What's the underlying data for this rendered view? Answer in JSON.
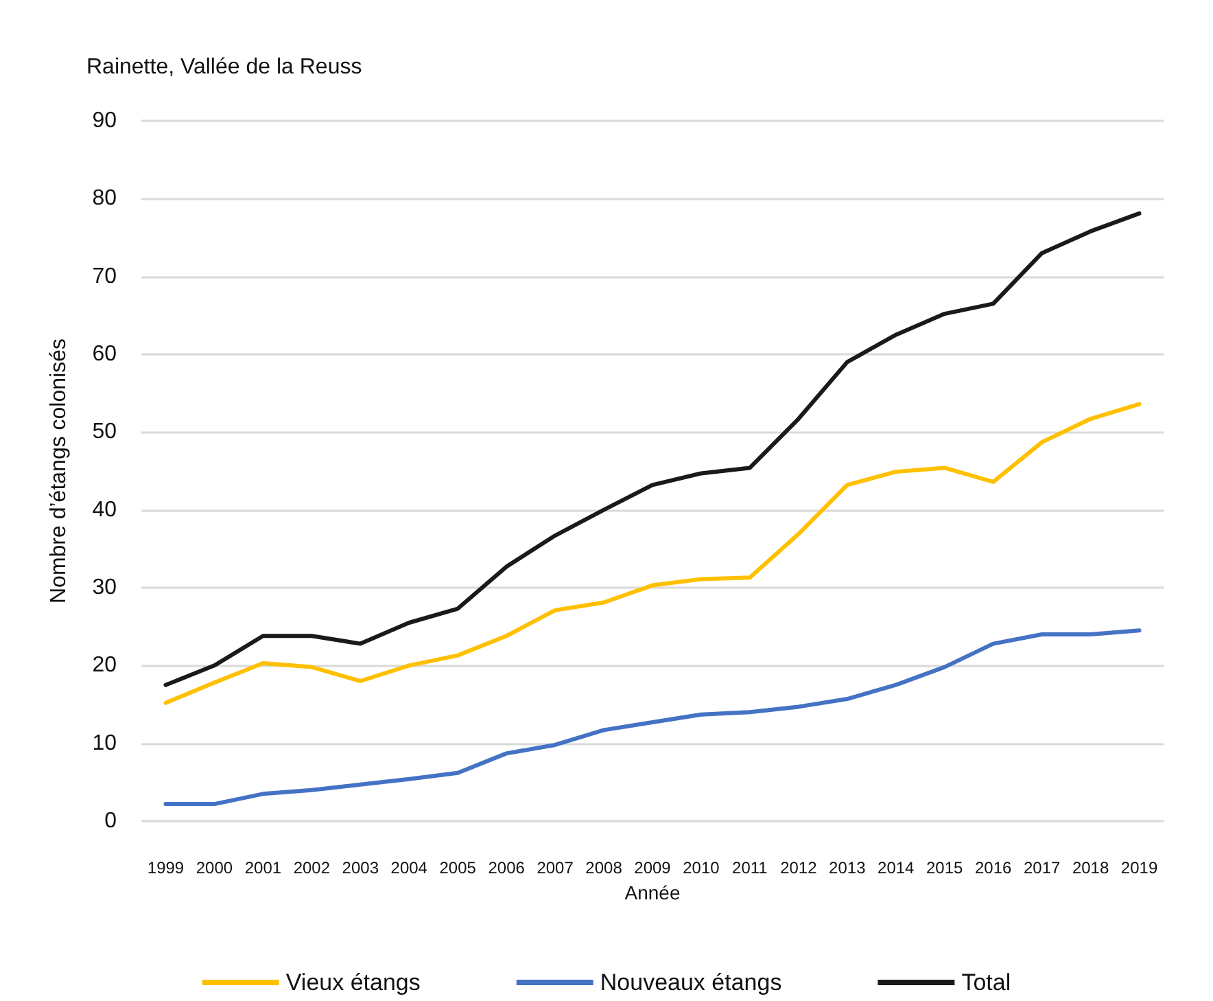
{
  "chart_data": {
    "type": "line",
    "title": "Rainette, Vallée de la Reuss",
    "xlabel": "Année",
    "ylabel": "Nombre d’étangs colonisés",
    "categories": [
      "1999",
      "2000",
      "2001",
      "2002",
      "2003",
      "2004",
      "2005",
      "2006",
      "2007",
      "2008",
      "2009",
      "2010",
      "2011",
      "2012",
      "2013",
      "2014",
      "2015",
      "2016",
      "2017",
      "2018",
      "2019"
    ],
    "series": [
      {
        "name": "Vieux étangs",
        "color": "#ffc000",
        "values": [
          15.2,
          17.8,
          20.3,
          19.8,
          18,
          20,
          21.3,
          23.8,
          27.1,
          28.1,
          30.3,
          31.1,
          31.3,
          36.9,
          43.2,
          44.9,
          45.4,
          43.6,
          48.7,
          51.7,
          53.6
        ]
      },
      {
        "name": "Nouveaux étangs",
        "color": "#4472c4",
        "values": [
          2.2,
          2.2,
          3.5,
          4,
          4.7,
          5.4,
          6.2,
          8.7,
          9.8,
          11.7,
          12.7,
          13.7,
          14,
          14.7,
          15.7,
          17.5,
          19.8,
          22.8,
          24,
          24,
          24.5
        ]
      },
      {
        "name": "Total",
        "color": "#1a1a1a",
        "values": [
          17.5,
          20,
          23.8,
          23.8,
          22.8,
          25.5,
          27.3,
          32.7,
          36.7,
          40,
          43.2,
          44.7,
          45.4,
          51.7,
          59,
          62.5,
          65.2,
          66.5,
          73,
          75.8,
          78.1
        ]
      }
    ],
    "ylim": [
      0,
      90
    ],
    "yticks": [
      0,
      10,
      20,
      30,
      40,
      50,
      60,
      70,
      80,
      90
    ],
    "grid": "y",
    "legend": "bottom",
    "marker": "none",
    "line_style": "solid"
  }
}
